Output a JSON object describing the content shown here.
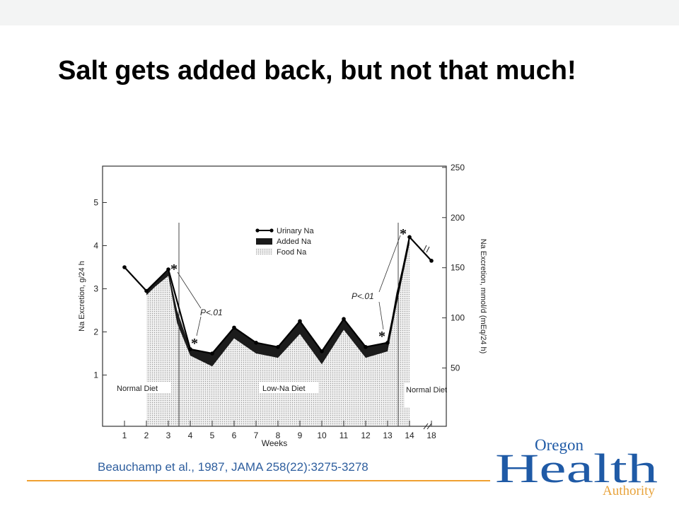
{
  "slide": {
    "title": "Salt gets added back, but not that much!",
    "citation": "Beauchamp et al., 1987, JAMA 258(22):3275-3278"
  },
  "logo": {
    "word_top": "Oregon",
    "word_main": "Health",
    "word_sub": "Authority",
    "colors": {
      "blue": "#1f5aa6",
      "orange": "#e8a33c"
    }
  },
  "chart_data": {
    "type": "area",
    "xlabel": "Weeks",
    "ylabel_left": "Na Excretion, g/24 h",
    "ylabel_right": "Na Excretion, mmol/d (mEq/24 h)",
    "x_ticks": [
      "1",
      "2",
      "3",
      "4",
      "5",
      "6",
      "7",
      "8",
      "9",
      "10",
      "11",
      "12",
      "13",
      "14",
      "18"
    ],
    "ylim_left": [
      0,
      5.5
    ],
    "left_ticks": [
      "1",
      "2",
      "3",
      "4",
      "5"
    ],
    "ylim_right": [
      0,
      250
    ],
    "right_ticks": [
      "50",
      "100",
      "150",
      "200",
      "250"
    ],
    "legend": [
      "Urinary Na",
      "Added Na",
      "Food Na"
    ],
    "series": [
      {
        "name": "Urinary Na",
        "x": [
          1,
          2,
          3,
          4,
          5,
          6,
          7,
          8,
          9,
          10,
          11,
          12,
          13,
          14,
          15
        ],
        "x_labels": [
          "1",
          "2",
          "3",
          "4",
          "5",
          "6",
          "7",
          "8",
          "9",
          "10",
          "11",
          "12",
          "13",
          "14",
          "18"
        ],
        "values": [
          3.5,
          2.95,
          3.45,
          1.6,
          1.5,
          2.1,
          1.75,
          1.65,
          2.25,
          1.55,
          2.3,
          1.65,
          1.75,
          4.2,
          3.65
        ]
      },
      {
        "name": "Food Na",
        "x": [
          2,
          2.4,
          3,
          3.4,
          4,
          5,
          6,
          7,
          8,
          9,
          10,
          11,
          12,
          13,
          13.4,
          14
        ],
        "values": [
          2.85,
          3.05,
          3.3,
          2.2,
          1.45,
          1.2,
          1.85,
          1.5,
          1.4,
          1.95,
          1.25,
          2.05,
          1.4,
          1.55,
          2.6,
          4.05
        ]
      },
      {
        "name": "Added Na",
        "x": [
          2,
          2.4,
          3,
          3.4,
          4,
          5,
          6,
          7,
          8,
          9,
          10,
          11,
          12,
          13,
          13.4,
          14
        ],
        "values": [
          2.95,
          3.15,
          3.42,
          2.5,
          1.6,
          1.5,
          2.1,
          1.75,
          1.65,
          2.25,
          1.55,
          2.3,
          1.65,
          1.75,
          2.9,
          4.2
        ]
      }
    ],
    "phases": [
      "Normal Diet",
      "Low-Na Diet",
      "Normal Diet"
    ],
    "annotations": [
      "*",
      "P<.01",
      "*",
      "P<.01",
      "*",
      "*"
    ]
  }
}
